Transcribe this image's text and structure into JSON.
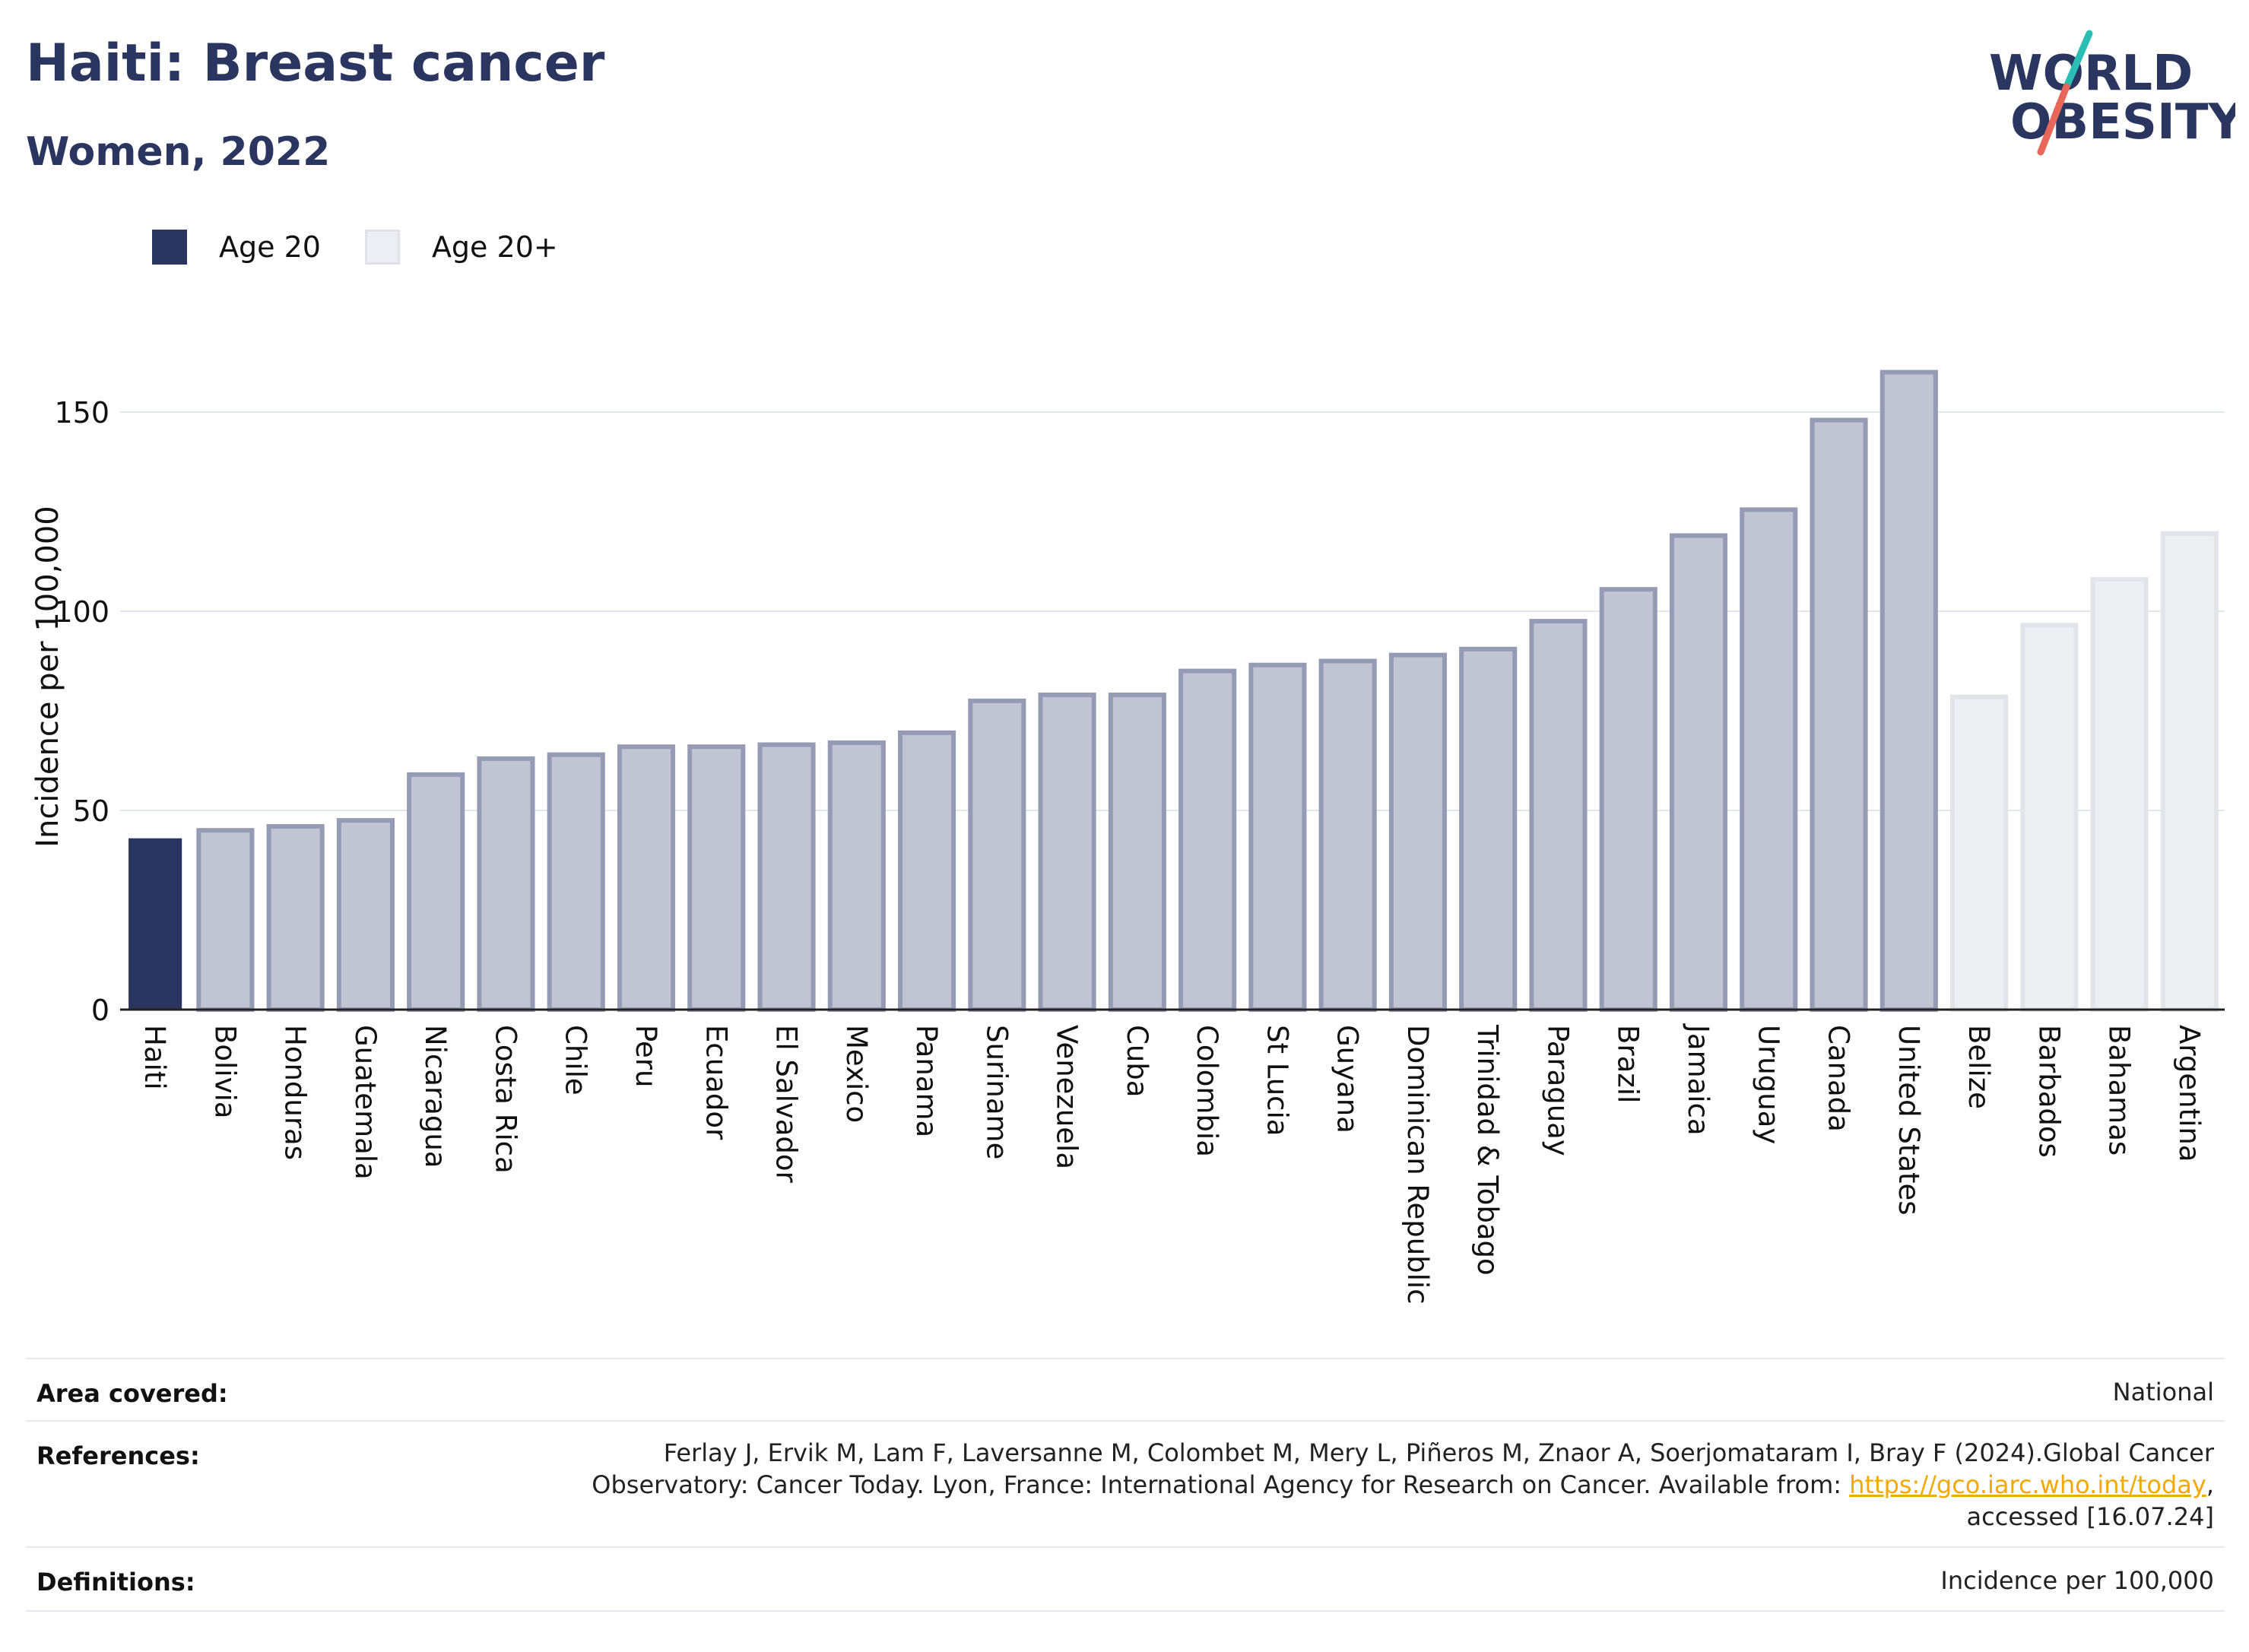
{
  "header": {
    "title": "Haiti: Breast cancer",
    "subtitle": "Women, 2022"
  },
  "logo": {
    "line1": "WORLD",
    "line2": "OBESITY",
    "accent_colors": [
      "#2bbfb3",
      "#e8675a"
    ]
  },
  "legend": [
    {
      "label": "Age 20",
      "color": "#2a3560"
    },
    {
      "label": "Age 20+",
      "color": "#eceef3"
    }
  ],
  "colors": {
    "highlight": "#2a3560",
    "main": "#c0c4d3",
    "main_border": "#959bb5",
    "light": "#eeeff3",
    "light_border": "#e2e4ea",
    "text_dark": "#2a3560"
  },
  "chart_data": {
    "type": "bar",
    "ylabel": "Incidence per 100,000",
    "xlabel": "",
    "ylim": [
      0,
      170
    ],
    "yticks": [
      0,
      50,
      100,
      150
    ],
    "grid": true,
    "legend_position": "top-left",
    "categories": [
      "Haiti",
      "Bolivia",
      "Honduras",
      "Guatemala",
      "Nicaragua",
      "Costa Rica",
      "Chile",
      "Peru",
      "Ecuador",
      "El Salvador",
      "Mexico",
      "Panama",
      "Suriname",
      "Venezuela",
      "Cuba",
      "Colombia",
      "St Lucia",
      "Guyana",
      "Dominican Republic",
      "Trinidad & Tobago",
      "Paraguay",
      "Brazil",
      "Jamaica",
      "Uruguay",
      "Canada",
      "United States",
      "Belize",
      "Barbados",
      "Bahamas",
      "Argentina"
    ],
    "values": [
      43,
      45,
      46,
      47.5,
      59,
      63,
      64,
      66,
      66,
      66.5,
      67,
      69.5,
      77.5,
      79,
      79,
      85,
      86.5,
      87.5,
      89,
      90.5,
      97.5,
      105.5,
      119,
      125.5,
      148,
      160,
      78.5,
      96.5,
      108,
      119.5
    ],
    "groups": [
      "Age 20",
      "Age 20+",
      "Age 20+",
      "Age 20+",
      "Age 20+",
      "Age 20+",
      "Age 20+",
      "Age 20+",
      "Age 20+",
      "Age 20+",
      "Age 20+",
      "Age 20+",
      "Age 20+",
      "Age 20+",
      "Age 20+",
      "Age 20+",
      "Age 20+",
      "Age 20+",
      "Age 20+",
      "Age 20+",
      "Age 20+",
      "Age 20+",
      "Age 20+",
      "Age 20+",
      "Age 20+",
      "Age 20+",
      "Age 20+",
      "Age 20+",
      "Age 20+",
      "Age 20+"
    ],
    "styles": [
      "highlight",
      "main",
      "main",
      "main",
      "main",
      "main",
      "main",
      "main",
      "main",
      "main",
      "main",
      "main",
      "main",
      "main",
      "main",
      "main",
      "main",
      "main",
      "main",
      "main",
      "main",
      "main",
      "main",
      "main",
      "main",
      "main",
      "light",
      "light",
      "light",
      "light"
    ]
  },
  "info": {
    "area_key": "Area covered:",
    "area_val": "National",
    "ref_key": "References:",
    "ref_line1": "Ferlay J, Ervik M, Lam F, Laversanne M, Colombet M, Mery L, Piñeros M, Znaor A, Soerjomataram I, Bray F (2024).Global Cancer",
    "ref_line2_pre": "Observatory: Cancer Today. Lyon, France: International Agency for Research on Cancer. Available from: ",
    "ref_link": "https://gco.iarc.who.int/today",
    "ref_line2_post": ",",
    "ref_line3": "accessed [16.07.24]",
    "def_key": "Definitions:",
    "def_val": "Incidence per 100,000"
  }
}
